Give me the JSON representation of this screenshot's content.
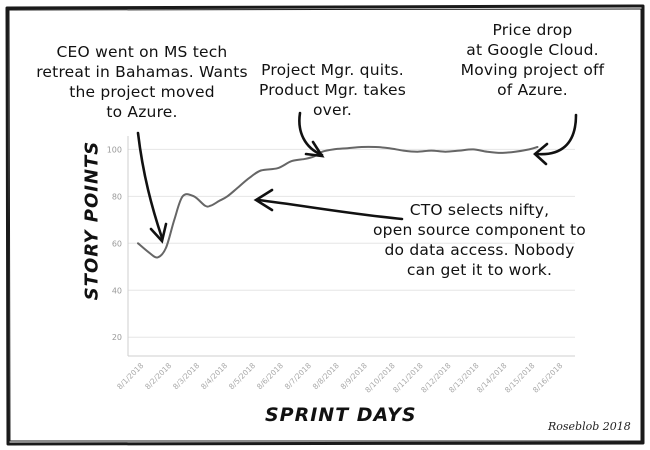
{
  "chart_data": {
    "type": "line",
    "xlabel": "SPRINT DAYS",
    "ylabel": "STORY POINTS",
    "x_categories": [
      "8/1/2018",
      "8/2/2018",
      "8/3/2018",
      "8/4/2018",
      "8/5/2018",
      "8/6/2018",
      "8/7/2018",
      "8/8/2018",
      "8/9/2018",
      "8/10/2018",
      "8/11/2018",
      "8/12/2018",
      "8/13/2018",
      "8/14/2018",
      "8/15/2018",
      "8/16/2018"
    ],
    "y_ticks": [
      20,
      40,
      60,
      80,
      100
    ],
    "ylim": [
      12,
      104
    ],
    "grid": "horizontal",
    "series": [
      {
        "x": [
          0,
          0.4,
          0.7,
          1.0,
          1.3,
          1.6,
          2.0,
          2.4,
          2.6,
          2.9,
          3.2,
          3.6,
          4.0,
          4.4,
          5.0,
          5.5,
          6.0,
          6.3,
          6.6,
          7.0,
          7.5,
          8.0,
          8.5,
          9.0,
          9.5,
          10.0,
          10.5,
          11.0,
          11.5,
          12.0,
          12.5,
          13.0,
          13.5,
          14.0,
          14.3
        ],
        "y": [
          60,
          56,
          54,
          58,
          70,
          80,
          80,
          76,
          76,
          78,
          80,
          84,
          88,
          91,
          92,
          95,
          96,
          97,
          99,
          100,
          100.5,
          101,
          101,
          100.5,
          99.5,
          99,
          99.5,
          99,
          99.5,
          100,
          99,
          98.5,
          99,
          100,
          101
        ]
      }
    ],
    "annotations": [
      "CEO went on MS tech\nretreat in Bahamas. Wants\nthe project moved\nto Azure.",
      "Project Mgr. quits.\nProduct Mgr. takes\nover.",
      "Price drop\nat Google Cloud.\nMoving project off\nof Azure.",
      "CTO selects nifty,\nopen source component to\ndo data access. Nobody\ncan get it to work."
    ],
    "credit": "Roseblob 2018"
  }
}
